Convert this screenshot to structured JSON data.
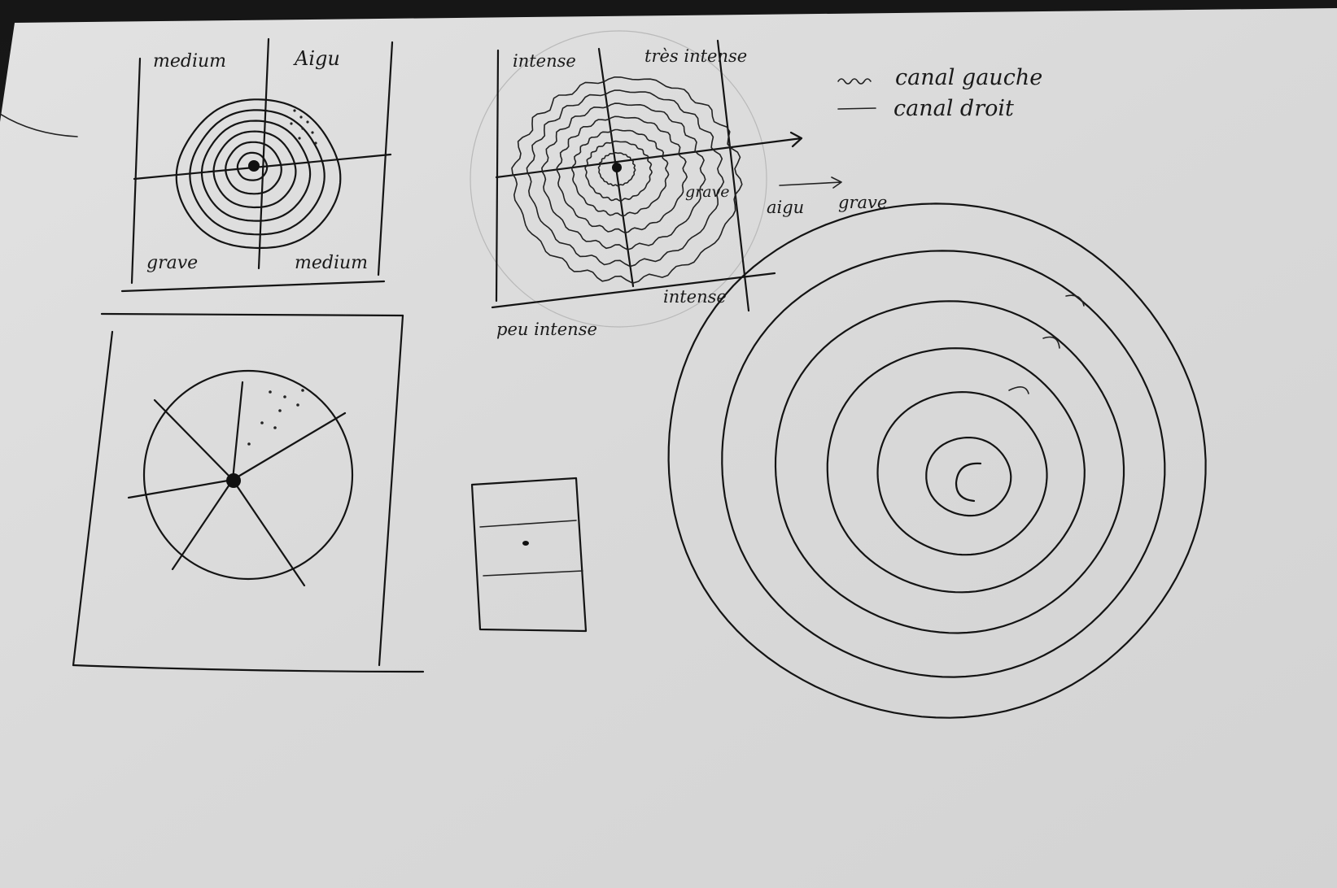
{
  "sketch_top_left": {
    "label_top_left": "medium",
    "label_top_right": "Aigu",
    "label_bottom_left": "grave",
    "label_bottom_right": "medium"
  },
  "sketch_top_middle": {
    "label_top_left": "intense",
    "label_top_right": "très intense",
    "label_bottom_left": "peu intense",
    "label_bottom_right": "intense",
    "label_inner": "grave",
    "axis_label_left": "aigu",
    "axis_label_right": "grave"
  },
  "legend": {
    "items": [
      {
        "label": "canal gauche",
        "line": "wavy"
      },
      {
        "label": "canal droit",
        "line": "straight"
      }
    ]
  },
  "colors": {
    "paper": "#dcdcdc",
    "ink": "#141414",
    "background": "#1a1a1a"
  }
}
